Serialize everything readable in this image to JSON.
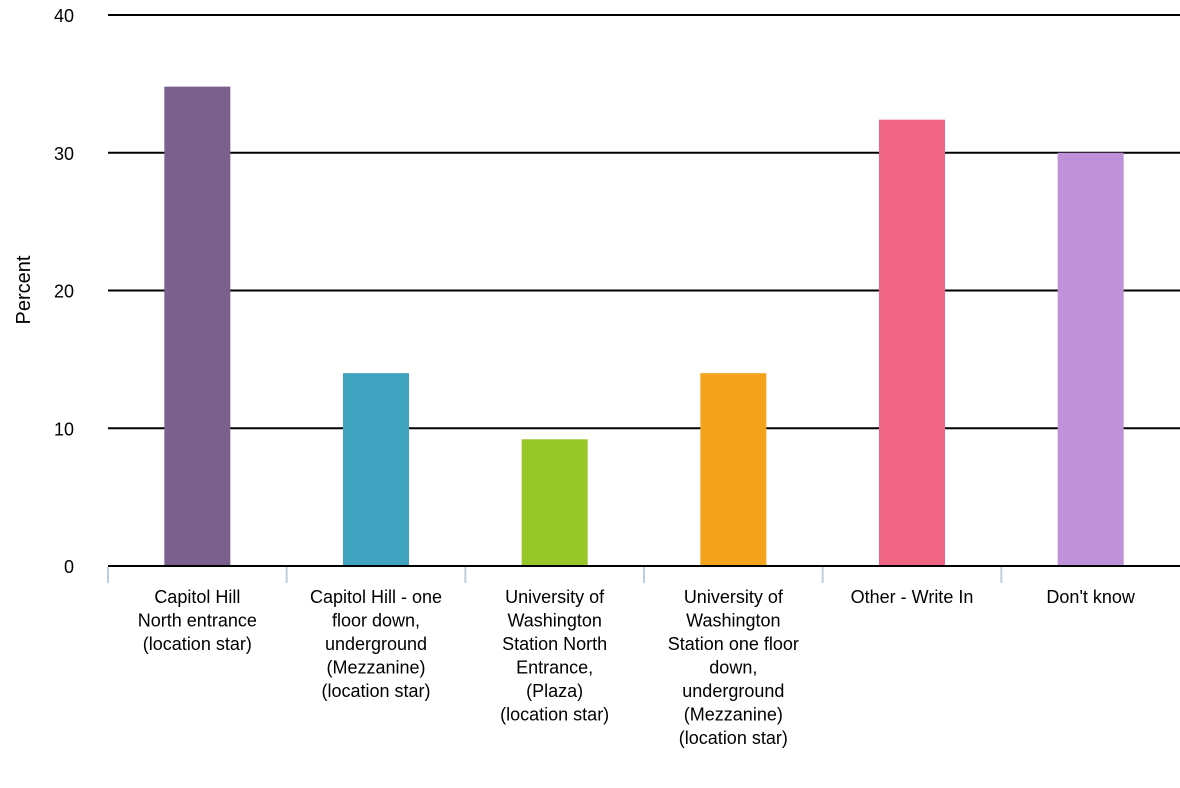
{
  "chart_data": {
    "type": "bar",
    "title": "",
    "xlabel": "",
    "ylabel": "Percent",
    "ylim": [
      0,
      40
    ],
    "yticks": [
      0,
      10,
      20,
      30,
      40
    ],
    "grid": true,
    "legend": "none",
    "categories": [
      "Capitol Hill North entrance (location star)",
      "Capitol Hill - one floor down, underground (Mezzanine) (location star)",
      "University of Washington Station North Entrance, (Plaza) (location star)",
      "University of Washington Station one floor down, underground (Mezzanine) (location star)",
      "Other - Write In",
      "Don't know"
    ],
    "category_label_lines": [
      [
        "Capitol Hill",
        "North entrance",
        "(location star)"
      ],
      [
        "Capitol Hill - one",
        "floor down,",
        "underground",
        "(Mezzanine)",
        "(location star)"
      ],
      [
        "University of",
        "Washington",
        "Station North",
        "Entrance,",
        "(Plaza)",
        "(location star)"
      ],
      [
        "University of",
        "Washington",
        "Station one floor",
        "down,",
        "underground",
        "(Mezzanine)",
        "(location star)"
      ],
      [
        "Other - Write In"
      ],
      [
        "Don't know"
      ]
    ],
    "values": [
      34.8,
      14.0,
      9.2,
      14.0,
      32.4,
      30.0
    ],
    "colors": [
      "#7B5F8C",
      "#40A4C0",
      "#98C72A",
      "#F4A41C",
      "#F06484",
      "#BF91D8"
    ],
    "axis_color": "#000000",
    "tick_color": "#BCD0E0"
  }
}
